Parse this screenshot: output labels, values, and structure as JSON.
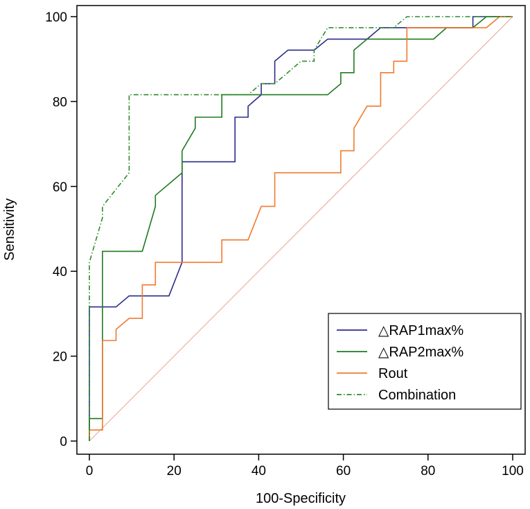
{
  "chart_data": {
    "type": "line",
    "title": "",
    "xlabel": "100-Specificity",
    "ylabel": "Sensitivity",
    "xlim": [
      0,
      100
    ],
    "ylim": [
      0,
      100
    ],
    "xticks": [
      0,
      20,
      40,
      60,
      80,
      100
    ],
    "yticks": [
      0,
      20,
      40,
      60,
      80,
      100
    ],
    "xtick_labels": [
      "0",
      "20",
      "40",
      "60",
      "80",
      "100"
    ],
    "ytick_labels": [
      "0",
      "20",
      "40",
      "60",
      "80",
      "100"
    ],
    "grid": false,
    "legend_position": "bottom-right",
    "reference_line": {
      "name": "Reference",
      "color": "#e8a48a",
      "points": [
        [
          0,
          0
        ],
        [
          100,
          100
        ]
      ]
    },
    "series": [
      {
        "name": "△RAP1max%",
        "color": "#2b2b8c",
        "dash": "solid",
        "points": [
          [
            0,
            0
          ],
          [
            0,
            31.6
          ],
          [
            6.3,
            31.6
          ],
          [
            9.4,
            34.2
          ],
          [
            18.8,
            34.2
          ],
          [
            21.9,
            42.1
          ],
          [
            21.9,
            65.8
          ],
          [
            34.4,
            65.8
          ],
          [
            34.4,
            76.3
          ],
          [
            37.5,
            76.3
          ],
          [
            37.5,
            78.9
          ],
          [
            40.6,
            81.6
          ],
          [
            40.6,
            84.2
          ],
          [
            43.8,
            84.2
          ],
          [
            43.8,
            89.5
          ],
          [
            46.9,
            92.1
          ],
          [
            53.1,
            92.1
          ],
          [
            56.3,
            94.7
          ],
          [
            65.6,
            94.7
          ],
          [
            68.8,
            97.4
          ],
          [
            90.6,
            97.4
          ],
          [
            90.6,
            100
          ],
          [
            100,
            100
          ]
        ]
      },
      {
        "name": "△RAP2max%",
        "color": "#1e7a1e",
        "dash": "solid",
        "points": [
          [
            0,
            0
          ],
          [
            0,
            5.3
          ],
          [
            3.1,
            5.3
          ],
          [
            3.1,
            44.7
          ],
          [
            12.5,
            44.7
          ],
          [
            15.6,
            55.3
          ],
          [
            15.6,
            57.9
          ],
          [
            21.9,
            63.2
          ],
          [
            21.9,
            68.4
          ],
          [
            25,
            73.7
          ],
          [
            25,
            76.3
          ],
          [
            31.3,
            76.3
          ],
          [
            31.3,
            81.6
          ],
          [
            56.3,
            81.6
          ],
          [
            59.4,
            84.2
          ],
          [
            59.4,
            86.8
          ],
          [
            62.5,
            86.8
          ],
          [
            62.5,
            92.1
          ],
          [
            65.6,
            94.7
          ],
          [
            81.3,
            94.7
          ],
          [
            84.4,
            97.4
          ],
          [
            90.6,
            97.4
          ],
          [
            93.8,
            100
          ],
          [
            100,
            100
          ]
        ]
      },
      {
        "name": "Rout",
        "color": "#f07a2e",
        "dash": "solid",
        "points": [
          [
            0,
            0
          ],
          [
            0,
            2.6
          ],
          [
            3.1,
            2.6
          ],
          [
            3.1,
            23.7
          ],
          [
            6.3,
            23.7
          ],
          [
            6.3,
            26.3
          ],
          [
            9.4,
            28.9
          ],
          [
            12.5,
            28.9
          ],
          [
            12.5,
            36.8
          ],
          [
            15.6,
            36.8
          ],
          [
            15.6,
            42.1
          ],
          [
            31.3,
            42.1
          ],
          [
            31.3,
            47.4
          ],
          [
            37.5,
            47.4
          ],
          [
            40.6,
            55.3
          ],
          [
            43.8,
            55.3
          ],
          [
            43.8,
            63.2
          ],
          [
            59.4,
            63.2
          ],
          [
            59.4,
            68.4
          ],
          [
            62.5,
            68.4
          ],
          [
            62.5,
            73.7
          ],
          [
            65.6,
            78.9
          ],
          [
            68.8,
            78.9
          ],
          [
            68.8,
            86.8
          ],
          [
            71.9,
            86.8
          ],
          [
            71.9,
            89.5
          ],
          [
            75,
            89.5
          ],
          [
            75,
            97.4
          ],
          [
            93.8,
            97.4
          ],
          [
            96.9,
            100
          ],
          [
            100,
            100
          ]
        ]
      },
      {
        "name": "Combination",
        "color": "#2e8b2e",
        "dash": "dashdot",
        "points": [
          [
            0,
            0
          ],
          [
            0,
            42.1
          ],
          [
            3.1,
            52.6
          ],
          [
            3.1,
            55.3
          ],
          [
            9.4,
            63.2
          ],
          [
            9.4,
            81.6
          ],
          [
            37.5,
            81.6
          ],
          [
            40.6,
            84.2
          ],
          [
            43.8,
            84.2
          ],
          [
            50,
            89.5
          ],
          [
            53.1,
            89.5
          ],
          [
            53.1,
            92.1
          ],
          [
            56.3,
            97.4
          ],
          [
            71.9,
            97.4
          ],
          [
            75,
            100
          ],
          [
            100,
            100
          ]
        ]
      }
    ]
  }
}
